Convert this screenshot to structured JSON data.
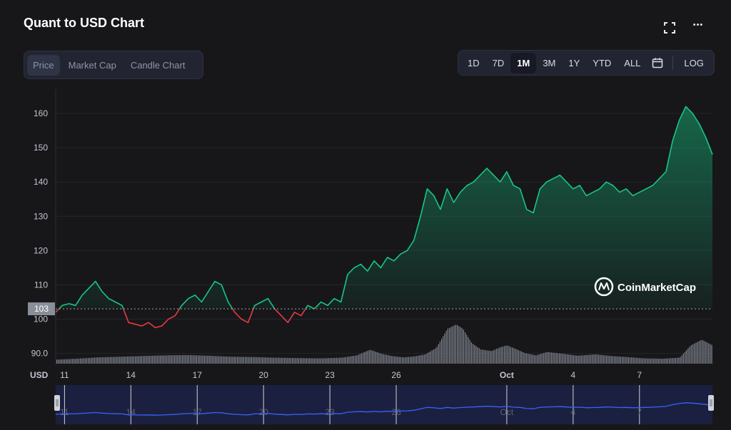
{
  "header": {
    "title": "Quant to USD Chart",
    "fullscreen_icon": "fullscreen-icon",
    "more_icon": "more-icon",
    "more_glyph": "•••"
  },
  "tabs": [
    {
      "label": "Price",
      "active": true
    },
    {
      "label": "Market Cap",
      "active": false
    },
    {
      "label": "Candle Chart",
      "active": false
    }
  ],
  "ranges": [
    {
      "label": "1D",
      "active": false
    },
    {
      "label": "7D",
      "active": false
    },
    {
      "label": "1M",
      "active": true
    },
    {
      "label": "3M",
      "active": false
    },
    {
      "label": "1Y",
      "active": false
    },
    {
      "label": "YTD",
      "active": false
    },
    {
      "label": "ALL",
      "active": false
    }
  ],
  "calendar_icon": "calendar-icon",
  "log_label": "LOG",
  "watermark": "CoinMarketCap",
  "colors": {
    "up": "#16c784",
    "down": "#ea3943",
    "accent": "#3861fb",
    "background": "#17171a"
  },
  "chart_data": {
    "type": "line",
    "currency_label": "USD",
    "yticks": [
      "160",
      "150",
      "140",
      "130",
      "120",
      "110",
      "100",
      "90.0"
    ],
    "ylim": [
      87,
      165
    ],
    "reference_price": 103,
    "reference_label": "103",
    "xticks": [
      {
        "label": "11",
        "x": 1
      },
      {
        "label": "14",
        "x": 4
      },
      {
        "label": "17",
        "x": 7
      },
      {
        "label": "20",
        "x": 10
      },
      {
        "label": "23",
        "x": 13
      },
      {
        "label": "26",
        "x": 16
      },
      {
        "label": "Oct",
        "x": 21
      },
      {
        "label": "4",
        "x": 24
      },
      {
        "label": "7",
        "x": 27
      }
    ],
    "xlim": [
      0.6,
      30.3
    ],
    "price_series": {
      "x": [
        0.6,
        0.9,
        1.2,
        1.5,
        1.8,
        2.1,
        2.4,
        2.7,
        3.0,
        3.3,
        3.6,
        3.9,
        4.2,
        4.5,
        4.8,
        5.1,
        5.4,
        5.7,
        6.0,
        6.3,
        6.6,
        6.9,
        7.2,
        7.5,
        7.8,
        8.1,
        8.4,
        8.7,
        9.0,
        9.3,
        9.6,
        9.9,
        10.2,
        10.5,
        10.8,
        11.1,
        11.4,
        11.7,
        12.0,
        12.3,
        12.6,
        12.9,
        13.2,
        13.5,
        13.8,
        14.1,
        14.4,
        14.7,
        15.0,
        15.3,
        15.6,
        15.9,
        16.2,
        16.5,
        16.8,
        17.1,
        17.4,
        17.7,
        18.0,
        18.3,
        18.6,
        18.9,
        19.2,
        19.5,
        19.8,
        20.1,
        20.4,
        20.7,
        21.0,
        21.3,
        21.6,
        21.9,
        22.2,
        22.5,
        22.8,
        23.1,
        23.4,
        23.7,
        24.0,
        24.3,
        24.6,
        24.9,
        25.2,
        25.5,
        25.8,
        26.1,
        26.4,
        26.7,
        27.0,
        27.3,
        27.6,
        27.9,
        28.2,
        28.5,
        28.8,
        29.1,
        29.4,
        29.7,
        30.0,
        30.3
      ],
      "y": [
        102,
        104,
        104.5,
        104,
        107,
        109,
        111,
        108,
        106,
        105,
        104,
        99,
        98.5,
        98,
        99,
        97.5,
        98,
        100,
        101,
        104,
        106,
        107,
        105,
        108,
        111,
        110,
        105,
        102,
        100,
        99,
        104,
        105,
        106,
        103,
        101,
        99,
        102,
        101,
        104,
        103,
        105,
        104,
        106,
        105,
        113,
        115,
        116,
        114,
        117,
        115,
        118,
        117,
        119,
        120,
        123,
        130,
        138,
        136,
        132,
        138,
        134,
        137,
        139,
        140,
        142,
        144,
        142,
        140,
        143,
        139,
        138,
        132,
        131,
        138,
        140,
        141,
        142,
        140,
        138,
        139,
        136,
        137,
        138,
        140,
        139,
        137,
        138,
        136,
        137,
        138,
        139,
        141,
        143,
        152,
        158,
        162,
        160,
        157,
        153,
        148
      ]
    },
    "volume_series": {
      "x": [
        0.6,
        1.5,
        2.5,
        3.5,
        4.5,
        5.5,
        6.5,
        7.5,
        8.5,
        9.5,
        10.5,
        11.5,
        12.5,
        13.5,
        14.2,
        14.8,
        15.3,
        15.8,
        16.3,
        16.8,
        17.3,
        17.8,
        18.3,
        18.7,
        19.0,
        19.4,
        19.8,
        20.3,
        20.7,
        21.0,
        21.4,
        21.8,
        22.3,
        22.8,
        23.5,
        24.2,
        25,
        25.7,
        26.4,
        27.2,
        28,
        28.8,
        29.3,
        29.8,
        30.3
      ],
      "y": [
        1.2,
        1.5,
        1.9,
        2.1,
        2.3,
        2.5,
        2.6,
        2.4,
        2.1,
        2.0,
        1.8,
        1.7,
        1.6,
        1.8,
        2.5,
        4.2,
        3.0,
        2.3,
        1.9,
        2.2,
        2.8,
        4.8,
        10.5,
        11.8,
        10.5,
        6.2,
        4.3,
        3.8,
        5.0,
        5.5,
        4.4,
        3.2,
        2.5,
        3.5,
        3.0,
        2.4,
        2.8,
        2.3,
        2.0,
        1.6,
        1.5,
        1.8,
        5.5,
        7.2,
        5.5
      ]
    }
  },
  "navigator": {
    "labels": [
      "11",
      "14",
      "17",
      "20",
      "23",
      "26",
      "Oct",
      "4",
      "7"
    ]
  }
}
